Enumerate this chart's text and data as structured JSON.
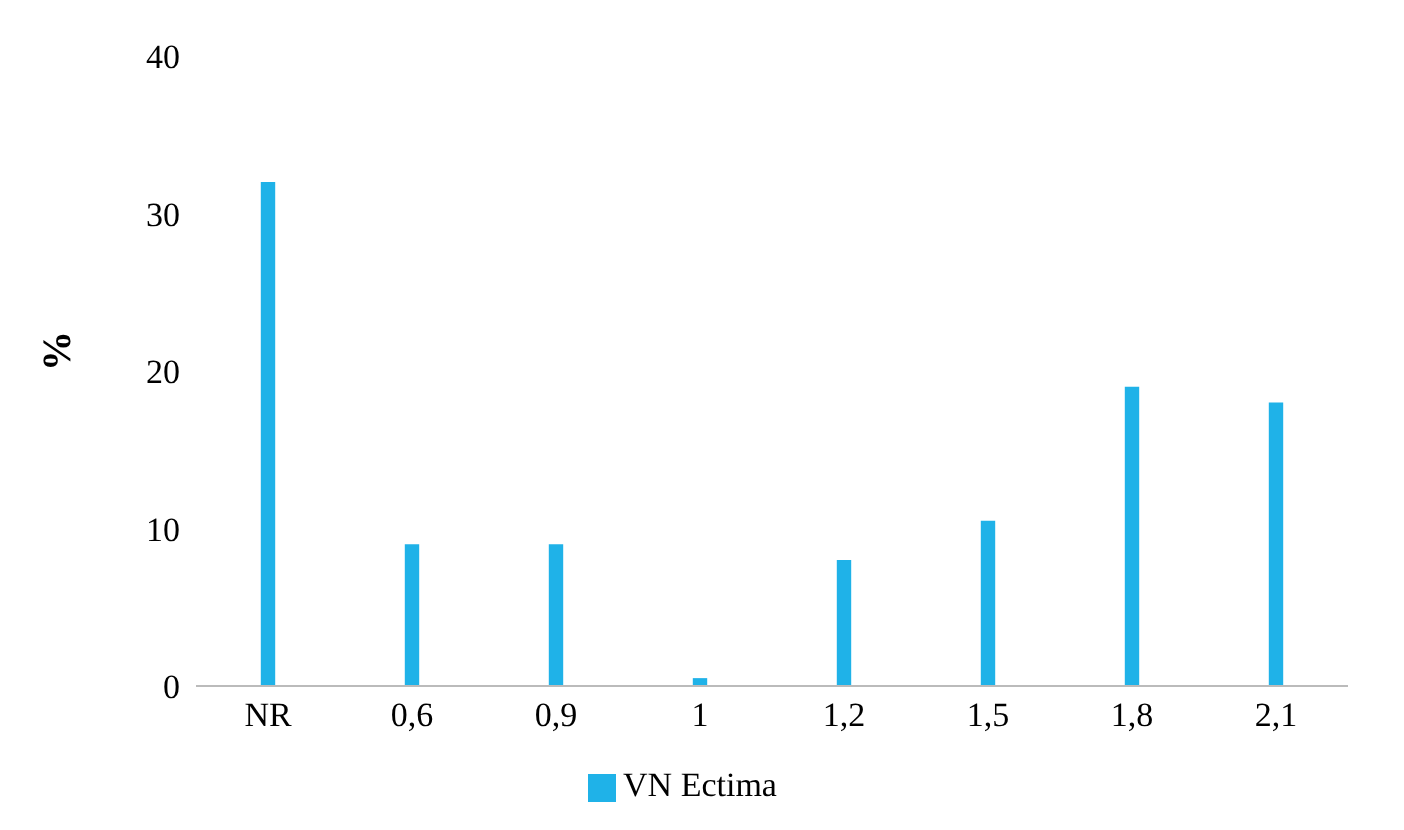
{
  "chart_data": {
    "type": "bar",
    "ylabel": "%",
    "categories": [
      "NR",
      "0,6",
      "0,9",
      "1",
      "1,2",
      "1,5",
      "1,8",
      "2,1"
    ],
    "series": [
      {
        "name": "VN Ectima",
        "color": "#1fb2e8",
        "values": [
          32,
          9,
          9,
          0.5,
          8,
          10.5,
          19,
          18
        ]
      }
    ],
    "ylim": [
      0,
      40
    ],
    "yticks": [
      0,
      10,
      20,
      30,
      40
    ],
    "grid": false,
    "legend": "bottom"
  }
}
